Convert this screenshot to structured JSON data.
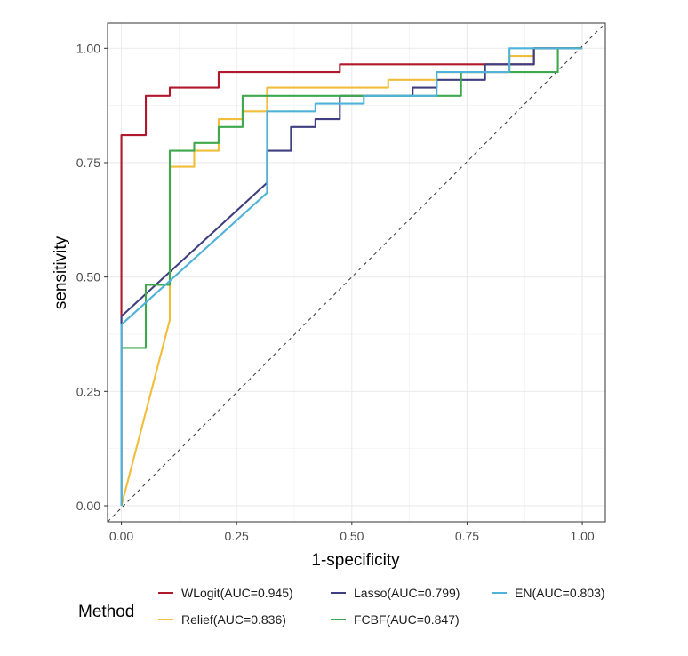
{
  "chart_data": {
    "type": "line",
    "xlabel": "1-specificity",
    "ylabel": "sensitivity",
    "xlim": [
      -0.03,
      1.05
    ],
    "ylim": [
      -0.035,
      1.055
    ],
    "xticks": [
      0,
      0.25,
      0.5,
      0.75,
      1.0
    ],
    "yticks": [
      0,
      0.25,
      0.5,
      0.75,
      1.0
    ],
    "xtick_labels": [
      "0.00",
      "0.25",
      "0.50",
      "0.75",
      "1.00"
    ],
    "ytick_labels": [
      "0.00",
      "0.25",
      "0.50",
      "0.75",
      "1.00"
    ],
    "grid": true,
    "reference_line": {
      "style": "dashed",
      "color": "#333333",
      "from": [
        -0.03,
        -0.035
      ],
      "to": [
        1.05,
        1.055
      ]
    },
    "legend": {
      "title": "Method",
      "placement": "bottom"
    },
    "series": [
      {
        "name": "WLogit(AUC=0.945)",
        "color": "#B2182B",
        "x": [
          0,
          0,
          0.053,
          0.053,
          0.105,
          0.105,
          0.211,
          0.211,
          0.474,
          0.474,
          0.895,
          0.895,
          1.0
        ],
        "y": [
          0,
          0.81,
          0.81,
          0.896,
          0.896,
          0.914,
          0.914,
          0.948,
          0.948,
          0.965,
          0.965,
          1.0,
          1.0
        ]
      },
      {
        "name": "Relief(AUC=0.836)",
        "color": "#F0BE3C",
        "x": [
          0,
          0.105,
          0.105,
          0.158,
          0.158,
          0.211,
          0.211,
          0.263,
          0.263,
          0.316,
          0.316,
          0.579,
          0.579,
          0.684,
          0.684,
          0.842,
          0.842,
          0.895,
          0.895,
          1.0
        ],
        "y": [
          0,
          0.406,
          0.741,
          0.741,
          0.776,
          0.776,
          0.845,
          0.845,
          0.862,
          0.862,
          0.914,
          0.914,
          0.931,
          0.931,
          0.948,
          0.948,
          0.983,
          0.983,
          1.0,
          1.0
        ]
      },
      {
        "name": "Lasso(AUC=0.799)",
        "color": "#3F3F7F",
        "x": [
          0,
          0,
          0.316,
          0.316,
          0.368,
          0.368,
          0.421,
          0.421,
          0.474,
          0.474,
          0.632,
          0.632,
          0.684,
          0.684,
          0.789,
          0.789,
          0.895,
          0.895,
          1.0
        ],
        "y": [
          0,
          0.414,
          0.706,
          0.776,
          0.776,
          0.828,
          0.828,
          0.845,
          0.845,
          0.896,
          0.896,
          0.914,
          0.914,
          0.931,
          0.931,
          0.965,
          0.965,
          1.0,
          1.0
        ]
      },
      {
        "name": "FCBF(AUC=0.847)",
        "color": "#3FA84F",
        "x": [
          0,
          0,
          0.053,
          0.053,
          0.105,
          0.105,
          0.158,
          0.158,
          0.211,
          0.211,
          0.263,
          0.263,
          0.737,
          0.737,
          0.842,
          0.842,
          0.947,
          0.947,
          1.0
        ],
        "y": [
          0,
          0.345,
          0.345,
          0.483,
          0.483,
          0.776,
          0.776,
          0.793,
          0.793,
          0.828,
          0.828,
          0.896,
          0.896,
          0.948,
          0.948,
          0.948,
          0.948,
          1.0,
          1.0
        ]
      },
      {
        "name": "EN(AUC=0.803)",
        "color": "#4FB3D9",
        "x": [
          0,
          0,
          0.316,
          0.316,
          0.421,
          0.421,
          0.526,
          0.526,
          0.684,
          0.684,
          0.842,
          0.842,
          1.0
        ],
        "y": [
          0,
          0.396,
          0.684,
          0.862,
          0.862,
          0.879,
          0.879,
          0.896,
          0.896,
          0.948,
          0.948,
          1.0,
          1.0
        ]
      }
    ]
  }
}
